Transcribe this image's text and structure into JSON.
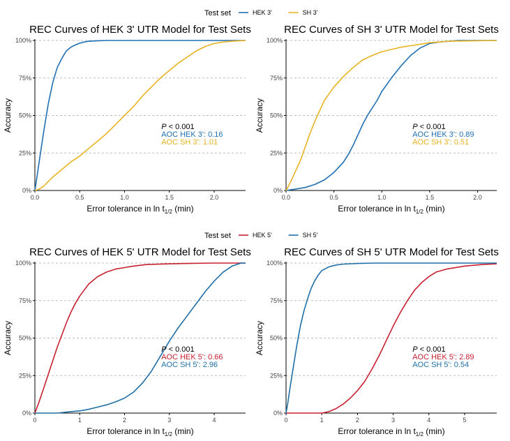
{
  "colors": {
    "hek3": "#1f6fb2",
    "sh3": "#e8b423",
    "hek5": "#c8202f",
    "sh5": "#1f6fa6",
    "annot_black": "#000000"
  },
  "legends": [
    {
      "title": "Test set",
      "entries": [
        {
          "label": "HEK 3'",
          "color_key": "hek3"
        },
        {
          "label": "SH 3'",
          "color_key": "sh3"
        }
      ]
    },
    {
      "title": "Test set",
      "entries": [
        {
          "label": "HEK 5'",
          "color_key": "hek5"
        },
        {
          "label": "SH 5'",
          "color_key": "sh5"
        }
      ]
    }
  ],
  "chart_data": [
    {
      "type": "line",
      "title": "REC Curves of HEK 3' UTR Model for Test Sets",
      "xlabel_main": "Error tolerance in ln t",
      "xlabel_sub": "1/2",
      "xlabel_tail": " (min)",
      "ylabel": "Accuracy",
      "xlim": [
        0,
        2.35
      ],
      "ylim": [
        0,
        1
      ],
      "xticks": [
        0.0,
        0.5,
        1.0,
        1.5,
        2.0
      ],
      "xtick_labels": [
        "0.0",
        "0.5",
        "1.0",
        "1.5",
        "2.0"
      ],
      "yticks": [
        0,
        0.25,
        0.5,
        0.75,
        1.0
      ],
      "ytick_labels": [
        "0%",
        "25%",
        "50%",
        "75%",
        "100%"
      ],
      "series": [
        {
          "name": "HEK 3'",
          "color_key": "hek3",
          "x": [
            0,
            0.03,
            0.06,
            0.1,
            0.15,
            0.2,
            0.25,
            0.3,
            0.35,
            0.4,
            0.45,
            0.5,
            0.55,
            0.6,
            0.7,
            0.8,
            1.0,
            2.35
          ],
          "y": [
            0,
            0.12,
            0.24,
            0.4,
            0.58,
            0.72,
            0.82,
            0.88,
            0.93,
            0.955,
            0.97,
            0.982,
            0.99,
            0.995,
            0.998,
            1.0,
            1.0,
            1.0
          ]
        },
        {
          "name": "SH 3'",
          "color_key": "sh3",
          "x": [
            0,
            0.05,
            0.1,
            0.15,
            0.2,
            0.3,
            0.4,
            0.5,
            0.6,
            0.7,
            0.8,
            0.9,
            1.0,
            1.1,
            1.2,
            1.3,
            1.4,
            1.5,
            1.6,
            1.7,
            1.8,
            1.9,
            2.0,
            2.1,
            2.2,
            2.35
          ],
          "y": [
            0,
            0.01,
            0.03,
            0.06,
            0.09,
            0.14,
            0.19,
            0.23,
            0.28,
            0.33,
            0.38,
            0.44,
            0.5,
            0.56,
            0.63,
            0.69,
            0.75,
            0.8,
            0.85,
            0.89,
            0.93,
            0.96,
            0.98,
            0.99,
            0.995,
            1.0
          ]
        }
      ],
      "annotations": [
        {
          "prefix": "P",
          "text": " < 0.001",
          "color_key": "annot_black"
        },
        {
          "prefix": "",
          "text": "AOC HEK 3': 0.16",
          "color_key": "hek3"
        },
        {
          "prefix": "",
          "text": "AOC SH 3': 1.01",
          "color_key": "sh3"
        }
      ]
    },
    {
      "type": "line",
      "title": "REC Curves of SH 3' UTR Model for Test Sets",
      "xlabel_main": "Error tolerance in ln t",
      "xlabel_sub": "1/2",
      "xlabel_tail": " (min)",
      "ylabel": "Accuracy",
      "xlim": [
        0,
        2.2
      ],
      "ylim": [
        0,
        1
      ],
      "xticks": [
        0.0,
        0.5,
        1.0,
        1.5,
        2.0
      ],
      "xtick_labels": [
        "0.0",
        "0.5",
        "1.0",
        "1.5",
        "2.0"
      ],
      "yticks": [
        0,
        0.25,
        0.5,
        0.75,
        1.0
      ],
      "ytick_labels": [
        "0%",
        "25%",
        "50%",
        "75%",
        "100%"
      ],
      "series": [
        {
          "name": "HEK 3'",
          "color_key": "hek3",
          "x": [
            0,
            0.1,
            0.2,
            0.3,
            0.4,
            0.5,
            0.6,
            0.65,
            0.7,
            0.75,
            0.8,
            0.85,
            0.9,
            0.95,
            1.0,
            1.1,
            1.2,
            1.3,
            1.4,
            1.5,
            1.6,
            1.7,
            1.8,
            2.0,
            2.2
          ],
          "y": [
            0,
            0.01,
            0.02,
            0.04,
            0.07,
            0.12,
            0.19,
            0.24,
            0.3,
            0.37,
            0.44,
            0.5,
            0.55,
            0.6,
            0.66,
            0.75,
            0.83,
            0.9,
            0.95,
            0.98,
            0.99,
            0.995,
            1.0,
            1.0,
            1.0
          ]
        },
        {
          "name": "SH 3'",
          "color_key": "sh3",
          "x": [
            0,
            0.05,
            0.1,
            0.15,
            0.2,
            0.25,
            0.3,
            0.35,
            0.4,
            0.5,
            0.6,
            0.7,
            0.8,
            0.9,
            1.0,
            1.1,
            1.2,
            1.3,
            1.4,
            1.5,
            1.7,
            2.2
          ],
          "y": [
            0,
            0.06,
            0.13,
            0.2,
            0.29,
            0.38,
            0.46,
            0.53,
            0.6,
            0.69,
            0.76,
            0.82,
            0.87,
            0.9,
            0.925,
            0.94,
            0.955,
            0.965,
            0.975,
            0.985,
            0.995,
            1.0
          ]
        }
      ],
      "annotations": [
        {
          "prefix": "P",
          "text": " < 0.001",
          "color_key": "annot_black"
        },
        {
          "prefix": "",
          "text": "AOC HEK 3': 0.89",
          "color_key": "hek3"
        },
        {
          "prefix": "",
          "text": "AOC SH 3': 0.51",
          "color_key": "sh3"
        }
      ]
    },
    {
      "type": "line",
      "title": "REC Curves of HEK 5' UTR Model for Test Sets",
      "xlabel_main": "Error tolerance in ln t",
      "xlabel_sub": "1/2",
      "xlabel_tail": " (min)",
      "ylabel": "Accuracy",
      "xlim": [
        0,
        4.7
      ],
      "ylim": [
        0,
        1
      ],
      "xticks": [
        0,
        1,
        2,
        3,
        4
      ],
      "xtick_labels": [
        "0",
        "1",
        "2",
        "3",
        "4"
      ],
      "yticks": [
        0,
        0.25,
        0.5,
        0.75,
        1.0
      ],
      "ytick_labels": [
        "0%",
        "25%",
        "50%",
        "75%",
        "100%"
      ],
      "series": [
        {
          "name": "HEK 5'",
          "color_key": "hek5",
          "x": [
            0,
            0.1,
            0.2,
            0.3,
            0.4,
            0.5,
            0.6,
            0.7,
            0.8,
            0.9,
            1.0,
            1.1,
            1.2,
            1.4,
            1.6,
            1.8,
            2.0,
            2.2,
            2.5,
            3.0,
            3.5,
            4.0,
            4.7
          ],
          "y": [
            0,
            0.08,
            0.17,
            0.26,
            0.35,
            0.44,
            0.52,
            0.6,
            0.67,
            0.73,
            0.78,
            0.82,
            0.86,
            0.91,
            0.94,
            0.96,
            0.97,
            0.98,
            0.99,
            0.995,
            0.998,
            1.0,
            1.0
          ]
        },
        {
          "name": "SH 5'",
          "color_key": "sh5",
          "x": [
            0,
            0.5,
            0.8,
            1.0,
            1.2,
            1.4,
            1.6,
            1.8,
            2.0,
            2.2,
            2.4,
            2.6,
            2.8,
            3.0,
            3.2,
            3.4,
            3.6,
            3.8,
            4.0,
            4.2,
            4.4,
            4.6,
            4.7
          ],
          "y": [
            0,
            0,
            0.01,
            0.015,
            0.025,
            0.04,
            0.055,
            0.075,
            0.1,
            0.14,
            0.2,
            0.28,
            0.38,
            0.48,
            0.57,
            0.65,
            0.73,
            0.81,
            0.88,
            0.94,
            0.98,
            1.0,
            1.0
          ]
        }
      ],
      "annotations": [
        {
          "prefix": "P",
          "text": " < 0.001",
          "color_key": "annot_black"
        },
        {
          "prefix": "",
          "text": "AOC HEK 5': 0.66",
          "color_key": "hek5"
        },
        {
          "prefix": "",
          "text": "AOC SH 5': 2.96",
          "color_key": "sh5"
        }
      ]
    },
    {
      "type": "line",
      "title": "REC Curves of SH 5' UTR Model for Test Sets",
      "xlabel_main": "Error tolerance in ln t",
      "xlabel_sub": "1/2",
      "xlabel_tail": " (min)",
      "ylabel": "Accuracy",
      "xlim": [
        0,
        5.9
      ],
      "ylim": [
        0,
        1
      ],
      "xticks": [
        0,
        1,
        2,
        3,
        4,
        5
      ],
      "xtick_labels": [
        "0",
        "1",
        "2",
        "3",
        "4",
        "5"
      ],
      "yticks": [
        0,
        0.25,
        0.5,
        0.75,
        1.0
      ],
      "ytick_labels": [
        "0%",
        "25%",
        "50%",
        "75%",
        "100%"
      ],
      "series": [
        {
          "name": "HEK 5'",
          "color_key": "hek5",
          "x": [
            0,
            1.0,
            1.2,
            1.4,
            1.6,
            1.8,
            2.0,
            2.2,
            2.4,
            2.6,
            2.8,
            3.0,
            3.2,
            3.4,
            3.6,
            3.8,
            4.0,
            4.2,
            4.5,
            5.0,
            5.5,
            5.9
          ],
          "y": [
            0,
            0,
            0.01,
            0.03,
            0.06,
            0.1,
            0.15,
            0.21,
            0.29,
            0.38,
            0.48,
            0.58,
            0.67,
            0.75,
            0.82,
            0.87,
            0.91,
            0.94,
            0.96,
            0.98,
            0.99,
            0.995
          ]
        },
        {
          "name": "SH 5'",
          "color_key": "sh5",
          "x": [
            0,
            0.05,
            0.1,
            0.2,
            0.3,
            0.4,
            0.5,
            0.6,
            0.7,
            0.8,
            0.9,
            1.0,
            1.2,
            1.4,
            1.6,
            2.0,
            2.5,
            3.0,
            5.9
          ],
          "y": [
            0,
            0.07,
            0.15,
            0.3,
            0.45,
            0.58,
            0.68,
            0.76,
            0.83,
            0.88,
            0.92,
            0.95,
            0.975,
            0.987,
            0.993,
            0.997,
            1.0,
            1.0,
            1.0
          ]
        }
      ],
      "annotations": [
        {
          "prefix": "P",
          "text": " < 0.001",
          "color_key": "annot_black"
        },
        {
          "prefix": "",
          "text": "AOC HEK 5': 2.89",
          "color_key": "hek5"
        },
        {
          "prefix": "",
          "text": "AOC SH 5': 0.54",
          "color_key": "sh5"
        }
      ]
    }
  ]
}
